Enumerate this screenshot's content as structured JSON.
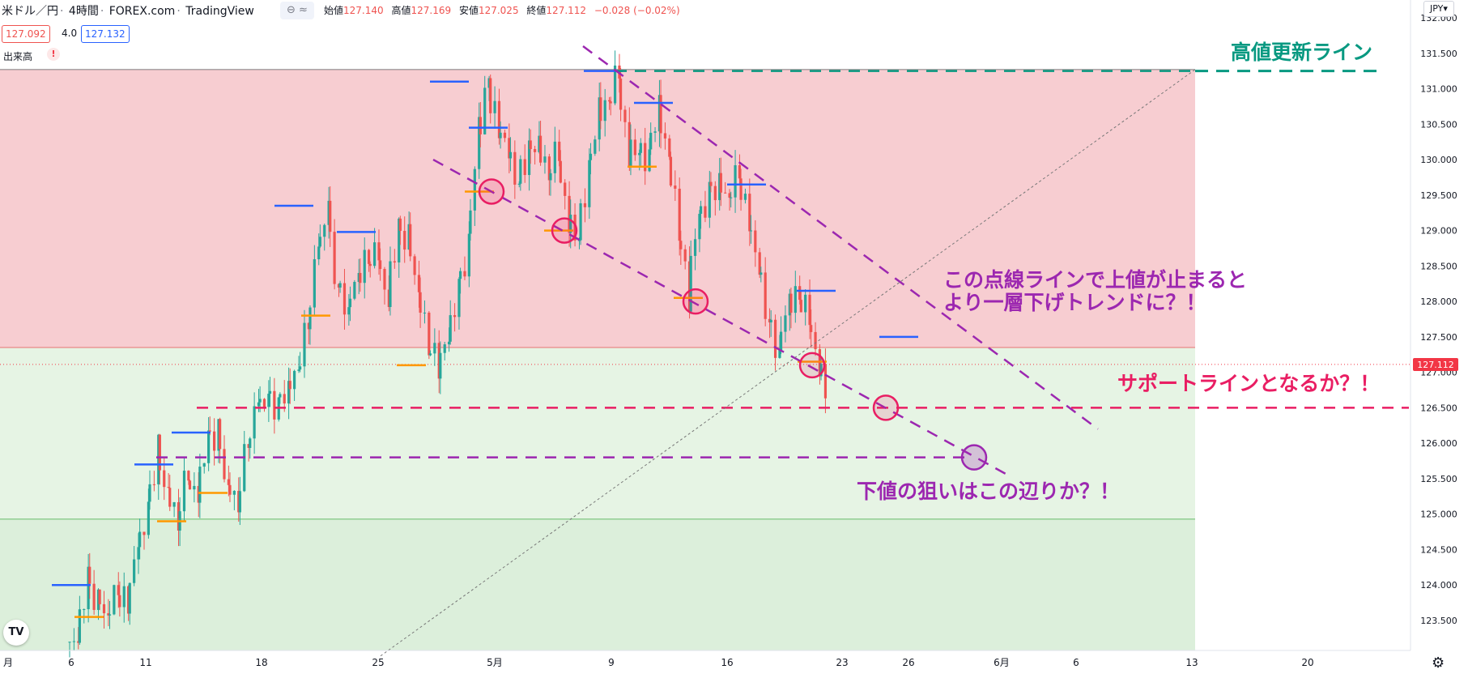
{
  "header": {
    "symbol": "米ドル／円",
    "interval": "4時間",
    "broker": "FOREX.com",
    "platform": "TradingView",
    "open_label": "始値",
    "open_value": "127.140",
    "high_label": "高値",
    "high_value": "127.169",
    "low_label": "安値",
    "low_value": "127.025",
    "close_label": "終値",
    "close_value": "127.112",
    "change_value": "−0.028 (−0.02%)"
  },
  "quote": {
    "bid": "127.092",
    "spread": "4.0",
    "ask": "127.132"
  },
  "volume_label": "出来高",
  "currency": "JPY",
  "price_label": "127.112",
  "icons": [
    "indicator-toggle-icon",
    "warning-icon",
    "tradingview-logo-icon",
    "settings-gear-icon"
  ],
  "chart_data": {
    "type": "candlestick",
    "y_axis": {
      "range": [
        123.0,
        132.0
      ],
      "ticks": [
        "123.500",
        "124.000",
        "124.500",
        "125.000",
        "125.500",
        "126.000",
        "126.500",
        "127.000",
        "127.500",
        "128.000",
        "128.500",
        "129.000",
        "129.500",
        "130.000",
        "130.500",
        "131.000",
        "131.500",
        "132.000"
      ]
    },
    "x_axis": {
      "ticks": [
        {
          "label": "6",
          "x": 6
        },
        {
          "label": "11",
          "x": 11
        },
        {
          "label": "18",
          "x": 18
        },
        {
          "label": "25",
          "x": 25
        },
        {
          "label": "5月",
          "x": 32
        },
        {
          "label": "9",
          "x": 36
        },
        {
          "label": "16",
          "x": 43
        },
        {
          "label": "23",
          "x": 50
        },
        {
          "label": "26",
          "x": 53
        },
        {
          "label": "6月",
          "x": 59
        },
        {
          "label": "6",
          "x": 64
        },
        {
          "label": "13",
          "x": 71
        },
        {
          "label": "20",
          "x": 78
        }
      ],
      "edge_label": "月"
    },
    "zones": [
      {
        "name": "resistance-zone",
        "from": 127.35,
        "to": 131.27,
        "color": "#f7cdd1"
      },
      {
        "name": "support-zone",
        "from": 124.93,
        "to": 127.35,
        "color": "#e6f4e4"
      },
      {
        "name": "lower-zone",
        "from": 123.0,
        "to": 124.93,
        "color": "#dcefdb"
      }
    ],
    "series_close": [
      123.2,
      123.9,
      123.8,
      123.6,
      123.9,
      123.8,
      124.4,
      124.9,
      125.7,
      125.4,
      125.0,
      125.5,
      125.3,
      125.9,
      126.1,
      125.5,
      125.2,
      125.9,
      126.5,
      126.6,
      126.5,
      126.7,
      127.0,
      127.6,
      128.6,
      129.2,
      128.3,
      127.9,
      128.3,
      128.6,
      128.7,
      128.1,
      128.8,
      128.9,
      128.3,
      127.6,
      127.2,
      127.4,
      128.0,
      128.6,
      130.1,
      131.0,
      130.6,
      130.2,
      129.7,
      130.0,
      130.2,
      129.9,
      130.1,
      129.3,
      128.9,
      129.6,
      130.5,
      130.8,
      131.2,
      130.3,
      130.1,
      130.0,
      130.6,
      130.2,
      129.3,
      128.3,
      129.0,
      129.4,
      129.6,
      129.5,
      129.8,
      129.3,
      128.6,
      127.8,
      127.3,
      127.9,
      128.1,
      127.9,
      127.2,
      126.7,
      127.0,
      127.5,
      127.1,
      126.9,
      127.11
    ],
    "annotations": {
      "high_update_line": {
        "label": "高値更新ライン",
        "price": 131.25,
        "color": "#089981"
      },
      "channel_note": {
        "line1": "この点線ラインで上値が止まると",
        "line2": "より一層下げトレンドに？！",
        "color": "#9c27b0"
      },
      "support_note": {
        "label": "サポートラインとなるか？！",
        "price": 126.5,
        "color": "#e91e63"
      },
      "target_note": {
        "label": "下値の狙いはこの辺りか？！",
        "price": 125.8,
        "color": "#9c27b0"
      }
    }
  }
}
